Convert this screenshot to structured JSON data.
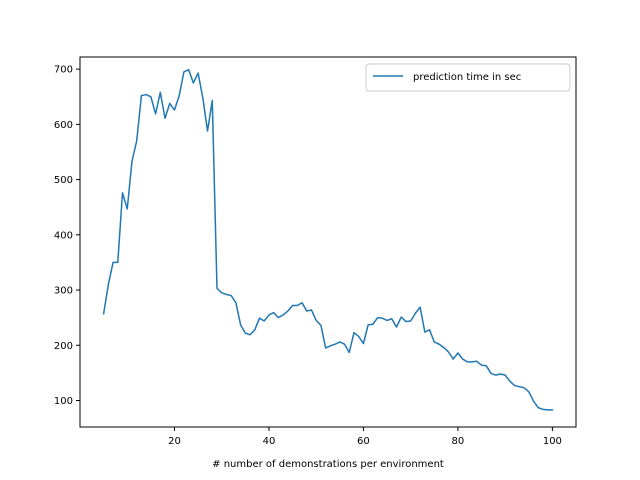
{
  "chart_data": {
    "type": "line",
    "title": "",
    "xlabel": "# number of demonstrations per environment",
    "ylabel": "",
    "xlim": [
      0,
      105
    ],
    "ylim": [
      52,
      722
    ],
    "x_ticks": [
      20,
      40,
      60,
      80,
      100
    ],
    "y_ticks": [
      100,
      200,
      300,
      400,
      500,
      600,
      700
    ],
    "grid": false,
    "legend_position": "top-right",
    "series": [
      {
        "name": "prediction time in sec",
        "color": "#1f77b4",
        "x": [
          5,
          6,
          7,
          8,
          9,
          10,
          11,
          12,
          13,
          14,
          15,
          16,
          17,
          18,
          19,
          20,
          21,
          22,
          23,
          24,
          25,
          26,
          27,
          28,
          29,
          30,
          31,
          32,
          33,
          34,
          35,
          36,
          37,
          38,
          39,
          40,
          41,
          42,
          43,
          44,
          45,
          46,
          47,
          48,
          49,
          50,
          51,
          52,
          53,
          54,
          55,
          56,
          57,
          58,
          59,
          60,
          61,
          62,
          63,
          64,
          65,
          66,
          67,
          68,
          69,
          70,
          71,
          72,
          73,
          74,
          75,
          76,
          77,
          78,
          79,
          80,
          81,
          82,
          83,
          84,
          85,
          86,
          87,
          88,
          89,
          90,
          91,
          92,
          93,
          94,
          95,
          96,
          97,
          98,
          99,
          100
        ],
        "y": [
          257,
          310,
          350,
          350,
          476,
          447,
          533,
          570,
          652,
          654,
          650,
          619,
          658,
          611,
          638,
          626,
          652,
          695,
          699,
          675,
          693,
          648,
          588,
          643,
          303,
          295,
          292,
          290,
          277,
          237,
          222,
          219,
          228,
          249,
          244,
          255,
          259,
          250,
          255,
          262,
          272,
          272,
          277,
          262,
          264,
          245,
          236,
          195,
          199,
          202,
          206,
          202,
          187,
          223,
          216,
          203,
          237,
          238,
          250,
          249,
          245,
          248,
          233,
          251,
          243,
          244,
          258,
          269,
          224,
          228,
          206,
          202,
          196,
          188,
          175,
          186,
          175,
          170,
          170,
          171,
          164,
          163,
          149,
          146,
          148,
          146,
          135,
          127,
          125,
          123,
          116,
          99,
          87,
          84,
          83,
          83
        ]
      }
    ]
  }
}
